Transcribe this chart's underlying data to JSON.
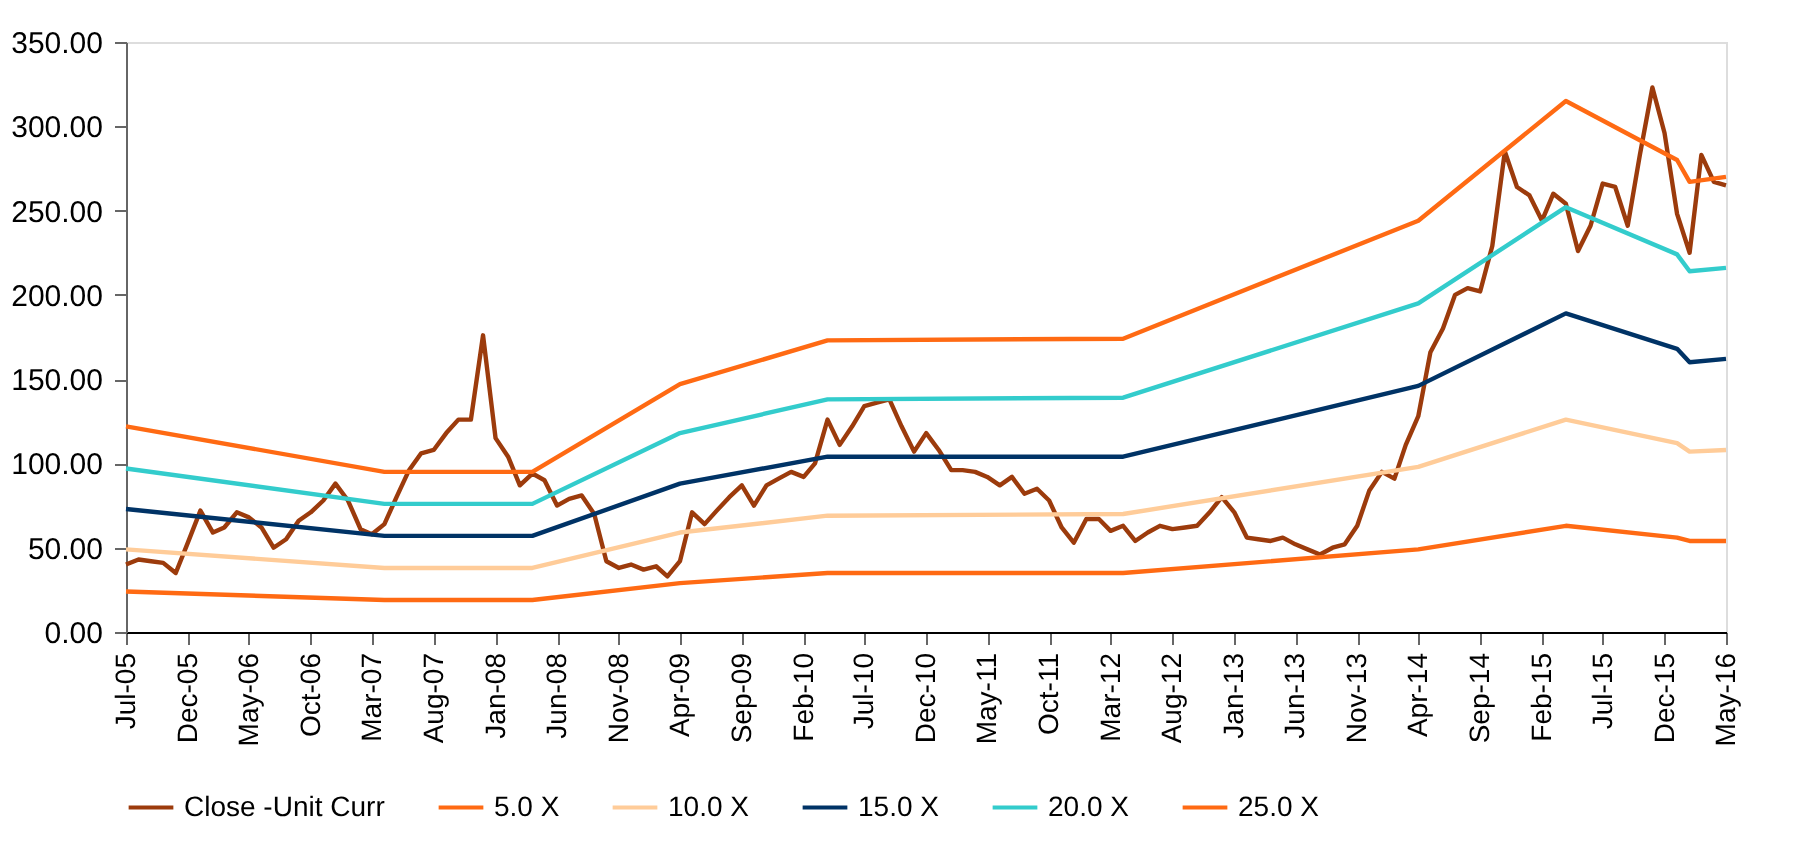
{
  "chart_data": {
    "type": "line",
    "x": [
      "2005-07",
      "2005-08",
      "2005-09",
      "2005-10",
      "2005-11",
      "2005-12",
      "2006-01",
      "2006-02",
      "2006-03",
      "2006-04",
      "2006-05",
      "2006-06",
      "2006-07",
      "2006-08",
      "2006-09",
      "2006-10",
      "2006-11",
      "2006-12",
      "2007-01",
      "2007-02",
      "2007-03",
      "2007-04",
      "2007-05",
      "2007-06",
      "2007-07",
      "2007-08",
      "2007-09",
      "2007-10",
      "2007-11",
      "2007-12",
      "2008-01",
      "2008-02",
      "2008-03",
      "2008-04",
      "2008-05",
      "2008-06",
      "2008-07",
      "2008-08",
      "2008-09",
      "2008-10",
      "2008-11",
      "2008-12",
      "2009-01",
      "2009-02",
      "2009-03",
      "2009-04",
      "2009-05",
      "2009-06",
      "2009-07",
      "2009-08",
      "2009-09",
      "2009-10",
      "2009-11",
      "2009-12",
      "2010-01",
      "2010-02",
      "2010-03",
      "2010-04",
      "2010-05",
      "2010-06",
      "2010-07",
      "2010-08",
      "2010-09",
      "2010-10",
      "2010-11",
      "2010-12",
      "2011-01",
      "2011-02",
      "2011-03",
      "2011-04",
      "2011-05",
      "2011-06",
      "2011-07",
      "2011-08",
      "2011-09",
      "2011-10",
      "2011-11",
      "2011-12",
      "2012-01",
      "2012-02",
      "2012-03",
      "2012-04",
      "2012-05",
      "2012-06",
      "2012-07",
      "2012-08",
      "2012-09",
      "2012-10",
      "2012-11",
      "2012-12",
      "2013-01",
      "2013-02",
      "2013-03",
      "2013-04",
      "2013-05",
      "2013-06",
      "2013-07",
      "2013-08",
      "2013-09",
      "2013-10",
      "2013-11",
      "2013-12",
      "2014-01",
      "2014-02",
      "2014-03",
      "2014-04",
      "2014-05",
      "2014-06",
      "2014-07",
      "2014-08",
      "2014-09",
      "2014-10",
      "2014-11",
      "2014-12",
      "2015-01",
      "2015-02",
      "2015-03",
      "2015-04",
      "2015-05",
      "2015-06",
      "2015-07",
      "2015-08",
      "2015-09",
      "2015-10",
      "2015-11",
      "2015-12",
      "2016-01",
      "2016-02",
      "2016-03",
      "2016-04",
      "2016-05"
    ],
    "series": [
      {
        "name": "Close -Unit Curr",
        "color": "#9c3b0c",
        "values": [
          40,
          43,
          42,
          41,
          35,
          53,
          72,
          59,
          62,
          71,
          68,
          62,
          50,
          55,
          66,
          71,
          78,
          88,
          78,
          61,
          58,
          64,
          80,
          96,
          106,
          108,
          118,
          126,
          126,
          176,
          115,
          104,
          87,
          94,
          90,
          75,
          79,
          81,
          70,
          42,
          38,
          40,
          37,
          39,
          33,
          42,
          71,
          64,
          72,
          80,
          87,
          75,
          87,
          91,
          95,
          92,
          100,
          126,
          111,
          122,
          134,
          136,
          138,
          122,
          107,
          118,
          108,
          96,
          96,
          95,
          92,
          87,
          92,
          82,
          85,
          78,
          62,
          53,
          67,
          67,
          60,
          63,
          54,
          59,
          63,
          61,
          62,
          63,
          71,
          80,
          71,
          56,
          55,
          54,
          56,
          52,
          49,
          46,
          50,
          52,
          63,
          84,
          95,
          91,
          111,
          128,
          166,
          180,
          200,
          204,
          202,
          229,
          285,
          264,
          259,
          244,
          260,
          254,
          226,
          241,
          266,
          264,
          241,
          283,
          323,
          296,
          248,
          225,
          283,
          267,
          265
        ]
      },
      {
        "name": "5.0 X",
        "color": "#ff6a13",
        "x": [
          "2005-07",
          "2007-04",
          "2008-04",
          "2009-04",
          "2010-04",
          "2012-04",
          "2014-04",
          "2015-04",
          "2016-01",
          "2016-02",
          "2016-05"
        ],
        "values": [
          24,
          19,
          19,
          29,
          35,
          35,
          49,
          63,
          56,
          54,
          54
        ]
      },
      {
        "name": "10.0 X",
        "color": "#ffcc99",
        "x": [
          "2005-07",
          "2007-04",
          "2008-04",
          "2009-04",
          "2010-04",
          "2012-04",
          "2014-04",
          "2015-04",
          "2016-01",
          "2016-02",
          "2016-05"
        ],
        "values": [
          49,
          38,
          38,
          59,
          69,
          70,
          98,
          126,
          112,
          107,
          108
        ]
      },
      {
        "name": "15.0 X",
        "color": "#003366",
        "x": [
          "2005-07",
          "2007-04",
          "2008-04",
          "2009-04",
          "2010-04",
          "2012-04",
          "2014-04",
          "2015-04",
          "2016-01",
          "2016-02",
          "2016-05"
        ],
        "values": [
          73,
          57,
          57,
          88,
          104,
          104,
          146,
          189,
          168,
          160,
          162
        ]
      },
      {
        "name": "20.0 X",
        "color": "#33cccc",
        "x": [
          "2005-07",
          "2007-04",
          "2008-04",
          "2009-04",
          "2010-04",
          "2012-04",
          "2014-04",
          "2015-04",
          "2016-01",
          "2016-02",
          "2016-05"
        ],
        "values": [
          97,
          76,
          76,
          118,
          138,
          139,
          195,
          252,
          224,
          214,
          216
        ]
      },
      {
        "name": "25.0 X",
        "color": "#ff6a13",
        "x": [
          "2005-07",
          "2007-04",
          "2008-04",
          "2009-04",
          "2010-04",
          "2012-04",
          "2014-04",
          "2015-04",
          "2016-01",
          "2016-02",
          "2016-05"
        ],
        "values": [
          122,
          95,
          95,
          147,
          173,
          174,
          244,
          315,
          280,
          267,
          270
        ]
      }
    ],
    "xlim": [
      "2005-07",
      "2016-05"
    ],
    "xticks": [
      {
        "value": "2005-07",
        "label": "Jul-05"
      },
      {
        "value": "2005-12",
        "label": "Dec-05"
      },
      {
        "value": "2006-05",
        "label": "May-06"
      },
      {
        "value": "2006-10",
        "label": "Oct-06"
      },
      {
        "value": "2007-03",
        "label": "Mar-07"
      },
      {
        "value": "2007-08",
        "label": "Aug-07"
      },
      {
        "value": "2008-01",
        "label": "Jan-08"
      },
      {
        "value": "2008-06",
        "label": "Jun-08"
      },
      {
        "value": "2008-11",
        "label": "Nov-08"
      },
      {
        "value": "2009-04",
        "label": "Apr-09"
      },
      {
        "value": "2009-09",
        "label": "Sep-09"
      },
      {
        "value": "2010-02",
        "label": "Feb-10"
      },
      {
        "value": "2010-07",
        "label": "Jul-10"
      },
      {
        "value": "2010-12",
        "label": "Dec-10"
      },
      {
        "value": "2011-05",
        "label": "May-11"
      },
      {
        "value": "2011-10",
        "label": "Oct-11"
      },
      {
        "value": "2012-03",
        "label": "Mar-12"
      },
      {
        "value": "2012-08",
        "label": "Aug-12"
      },
      {
        "value": "2013-01",
        "label": "Jan-13"
      },
      {
        "value": "2013-06",
        "label": "Jun-13"
      },
      {
        "value": "2013-11",
        "label": "Nov-13"
      },
      {
        "value": "2014-04",
        "label": "Apr-14"
      },
      {
        "value": "2014-09",
        "label": "Sep-14"
      },
      {
        "value": "2015-02",
        "label": "Feb-15"
      },
      {
        "value": "2015-07",
        "label": "Jul-15"
      },
      {
        "value": "2015-12",
        "label": "Dec-15"
      },
      {
        "value": "2016-05",
        "label": "May-16"
      }
    ],
    "ylim": [
      0,
      350
    ],
    "yticks": [
      {
        "value": 0,
        "label": "0.00"
      },
      {
        "value": 50,
        "label": "50.00"
      },
      {
        "value": 100,
        "label": "100.00"
      },
      {
        "value": 150,
        "label": "150.00"
      },
      {
        "value": 200,
        "label": "200.00"
      },
      {
        "value": 250,
        "label": "250.00"
      },
      {
        "value": 300,
        "label": "300.00"
      },
      {
        "value": 350,
        "label": "350.00"
      }
    ],
    "legend": "bottom"
  }
}
